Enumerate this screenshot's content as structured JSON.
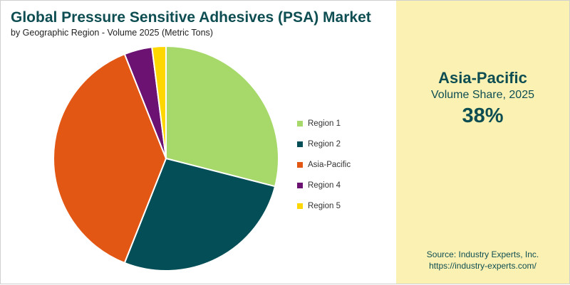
{
  "header": {
    "title": "Global Pressure Sensitive Adhesives (PSA) Market",
    "subtitle": "by Geographic Region - Volume 2025 (Metric Tons)"
  },
  "highlight": {
    "region": "Asia-Pacific",
    "label": "Volume Share, 2025",
    "value": "38%"
  },
  "source": {
    "line1": "Source: Industry Experts, Inc.",
    "line2": "https://industry-experts.com/"
  },
  "colors": {
    "title": "#0e4e52",
    "panel_bg": "#fbf1b3"
  },
  "chart_data": {
    "type": "pie",
    "title": "Global Pressure Sensitive Adhesives (PSA) Market",
    "subtitle": "by Geographic Region - Volume 2025 (Metric Tons)",
    "legend_position": "right",
    "unit": "%",
    "series": [
      {
        "name": "Region 1",
        "value": 29,
        "color": "#a6d96a"
      },
      {
        "name": "Region 2",
        "value": 27,
        "color": "#034e57"
      },
      {
        "name": "Asia-Pacific",
        "value": 38,
        "color": "#e35714"
      },
      {
        "name": "Region 4",
        "value": 4,
        "color": "#6b1272"
      },
      {
        "name": "Region 5",
        "value": 2,
        "color": "#ffd700"
      }
    ]
  }
}
